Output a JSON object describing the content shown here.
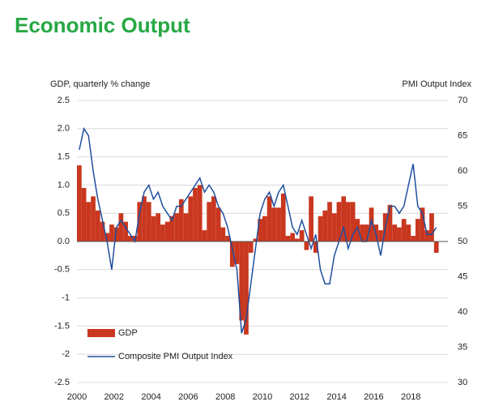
{
  "chart_data": {
    "type": "bar_line",
    "title": "Economic Output",
    "y_label": "GDP, quarterly % change",
    "y2_label": "PMI Output  Index",
    "categories": [
      "2000",
      null,
      null,
      null,
      null,
      null,
      null,
      null,
      "2002",
      null,
      null,
      null,
      null,
      null,
      null,
      null,
      "2004",
      null,
      null,
      null,
      null,
      null,
      null,
      null,
      "2006",
      null,
      null,
      null,
      null,
      null,
      null,
      null,
      "2008",
      null,
      null,
      null,
      null,
      null,
      null,
      null,
      "2010",
      null,
      null,
      null,
      null,
      null,
      null,
      null,
      "2012",
      null,
      null,
      null,
      null,
      null,
      null,
      null,
      "2014",
      null,
      null,
      null,
      null,
      null,
      null,
      null,
      "2016",
      null,
      null,
      null,
      null,
      null,
      null,
      null,
      "2018",
      null,
      null,
      null,
      null,
      null
    ],
    "series": [
      {
        "name": "GDP",
        "type": "bar",
        "color": "#c9371f",
        "values": [
          1.35,
          0.95,
          0.7,
          0.8,
          0.55,
          0.35,
          0.15,
          0.3,
          0.25,
          0.5,
          0.35,
          0.1,
          0.1,
          0.7,
          0.8,
          0.7,
          0.45,
          0.5,
          0.3,
          0.35,
          0.45,
          0.5,
          0.75,
          0.5,
          0.8,
          0.95,
          1.0,
          0.2,
          0.7,
          0.8,
          0.6,
          0.25,
          0.1,
          -0.45,
          -0.4,
          -1.4,
          -1.65,
          -0.2,
          0.05,
          0.4,
          0.45,
          0.8,
          0.6,
          0.6,
          0.85,
          0.1,
          0.15,
          0.05,
          0.2,
          -0.15,
          0.8,
          -0.2,
          0.45,
          0.55,
          0.7,
          0.5,
          0.7,
          0.8,
          0.7,
          0.7,
          0.4,
          0.3,
          0.3,
          0.6,
          0.3,
          0.2,
          0.5,
          0.65,
          0.3,
          0.25,
          0.4,
          0.3,
          0.1,
          0.4,
          0.6,
          0.2,
          0.5,
          -0.2
        ]
      },
      {
        "name": "Composite PMI Output Index",
        "type": "line",
        "axis": "y2",
        "color": "#1f4e9e",
        "values": [
          63,
          66,
          65,
          60,
          56,
          53,
          50,
          46,
          52,
          53,
          52,
          51,
          50,
          54,
          57,
          58,
          56,
          57,
          55,
          54,
          53,
          55,
          55,
          56,
          57,
          58,
          59,
          57,
          58,
          57,
          55,
          54,
          52,
          49,
          46,
          37,
          39,
          44,
          49,
          54,
          56,
          57,
          55,
          57,
          58,
          55,
          52,
          51,
          53,
          51,
          49,
          51,
          46,
          44,
          44,
          48,
          50,
          52,
          49,
          51,
          52,
          50,
          50,
          53,
          51,
          48,
          52,
          55,
          55,
          54,
          55,
          58,
          61,
          55,
          54,
          51,
          51,
          52
        ]
      }
    ],
    "ylim": [
      -2.5,
      2.5
    ],
    "yticks": [
      -2.5,
      -2.0,
      -1.5,
      -1.0,
      -0.5,
      {
        "value": 0,
        "label": "0.0"
      },
      0.5,
      {
        "value": 1,
        "label": "1.0"
      },
      1.5,
      {
        "value": 2,
        "label": "2.0"
      },
      2.5
    ],
    "y2lim": [
      30,
      70
    ],
    "y2ticks": [
      30,
      35,
      40,
      45,
      50,
      55,
      60,
      65,
      70
    ],
    "grid": true
  }
}
